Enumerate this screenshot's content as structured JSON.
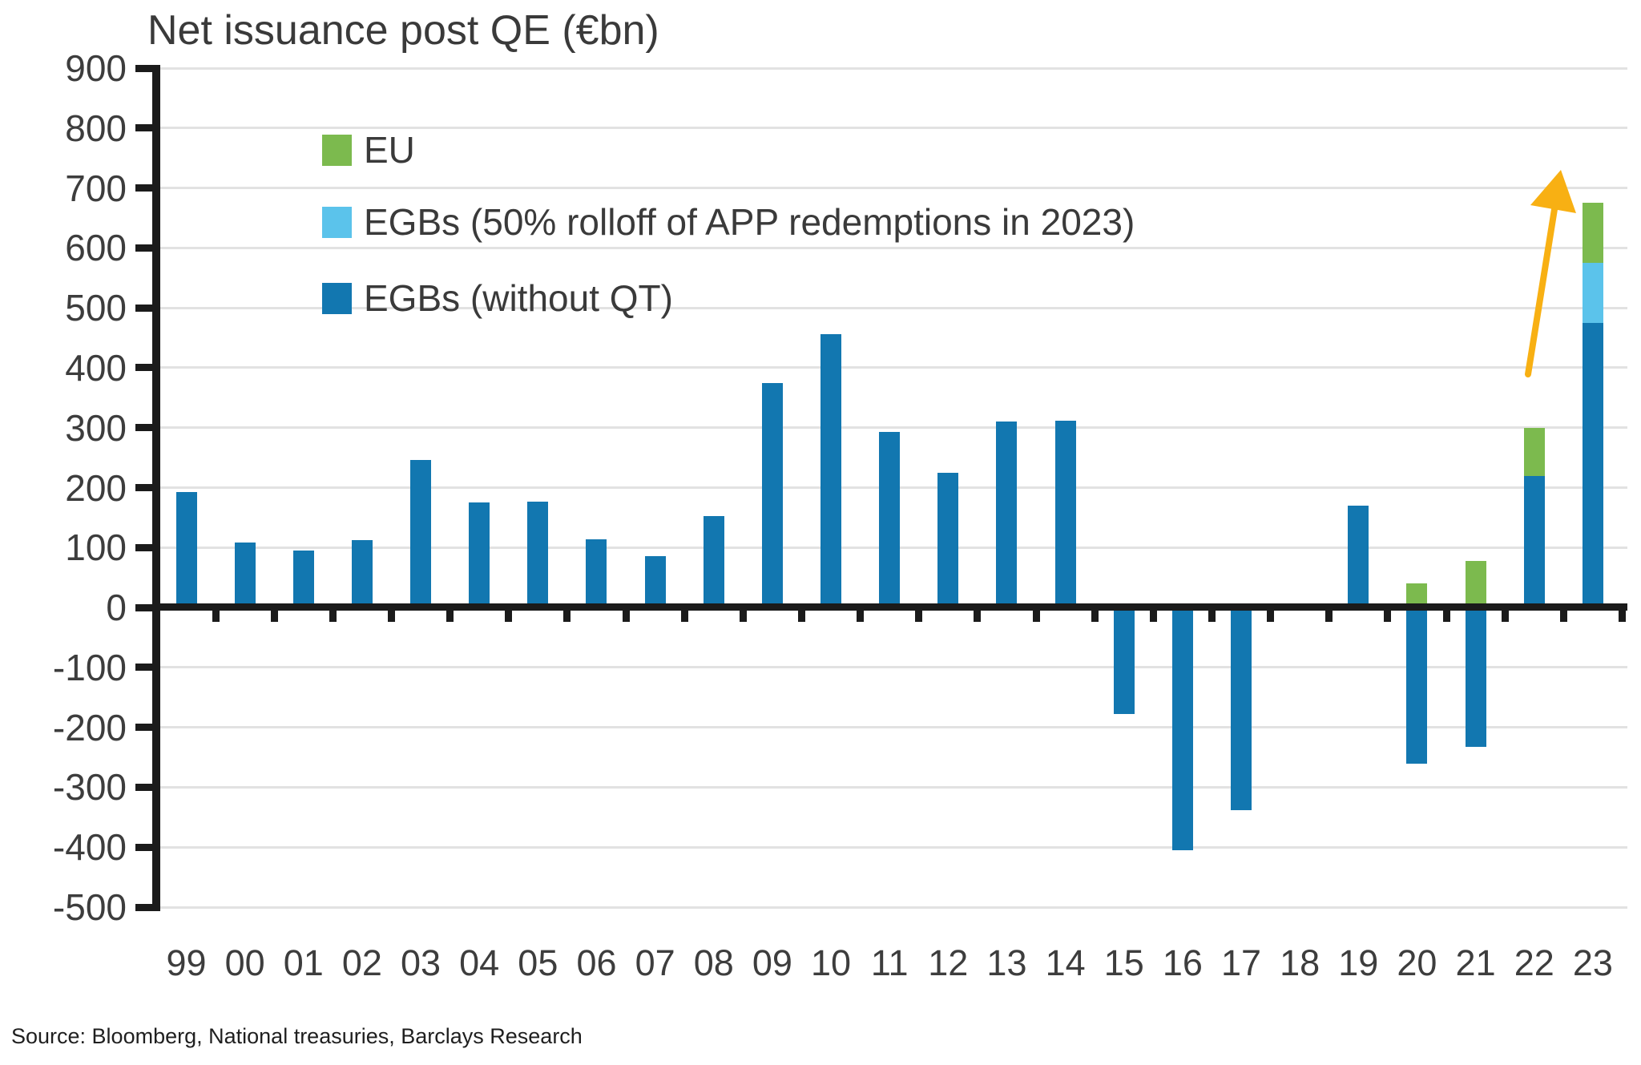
{
  "chart": {
    "title": "Net issuance post QE (€bn)",
    "source": "Source: Bloomberg, National treasuries, Barclays Research"
  },
  "legend": {
    "items": [
      {
        "label": "EU",
        "color": "#7cba4e"
      },
      {
        "label": "EGBs (50% rolloff of APP redemptions in 2023)",
        "color": "#5bc3eb"
      },
      {
        "label": "EGBs (without QT)",
        "color": "#1277b0"
      }
    ]
  },
  "colors": {
    "eu_green": "#7cba4e",
    "egb_rolloff_blue": "#5bc3eb",
    "egb_dark_blue": "#1277b0",
    "arrow_gold": "#f8b013",
    "gridline": "#e2e2e2",
    "axis": "#1b1b1b",
    "label_text": "#3d3d3d"
  },
  "chart_data": {
    "type": "bar",
    "stacked": true,
    "title": "Net issuance post QE (€bn)",
    "xlabel": "",
    "ylabel": "",
    "ylim": [
      -500,
      900
    ],
    "yticks": [
      -500,
      -400,
      -300,
      -200,
      -100,
      0,
      100,
      200,
      300,
      400,
      500,
      600,
      700,
      800,
      900
    ],
    "grid": true,
    "legend_position": "top-left-inside",
    "categories": [
      "99",
      "00",
      "01",
      "02",
      "03",
      "04",
      "05",
      "06",
      "07",
      "08",
      "09",
      "10",
      "11",
      "12",
      "13",
      "14",
      "15",
      "16",
      "17",
      "18",
      "19",
      "20",
      "21",
      "22",
      "23"
    ],
    "series": [
      {
        "name": "EGBs (without QT)",
        "color": "#1277b0",
        "values": [
          192,
          108,
          95,
          112,
          246,
          175,
          177,
          114,
          86,
          152,
          375,
          456,
          293,
          225,
          310,
          312,
          -178,
          -405,
          -338,
          0,
          170,
          -260,
          -233,
          220,
          475
        ]
      },
      {
        "name": "EGBs (50% rolloff of APP redemptions in 2023)",
        "color": "#5bc3eb",
        "values": [
          0,
          0,
          0,
          0,
          0,
          0,
          0,
          0,
          0,
          0,
          0,
          0,
          0,
          0,
          0,
          0,
          0,
          0,
          0,
          0,
          0,
          0,
          0,
          0,
          100
        ]
      },
      {
        "name": "EU",
        "color": "#7cba4e",
        "values": [
          0,
          0,
          0,
          0,
          0,
          0,
          0,
          0,
          0,
          0,
          0,
          0,
          0,
          0,
          0,
          0,
          0,
          0,
          0,
          0,
          0,
          40,
          78,
          80,
          100
        ]
      }
    ],
    "annotations": [
      {
        "type": "arrow",
        "color": "#f8b013",
        "from": {
          "category_index": 22.9,
          "value": 390
        },
        "to": {
          "category_index": 23.45,
          "value": 730
        },
        "meaning": "sharp increase in 2023"
      }
    ]
  }
}
